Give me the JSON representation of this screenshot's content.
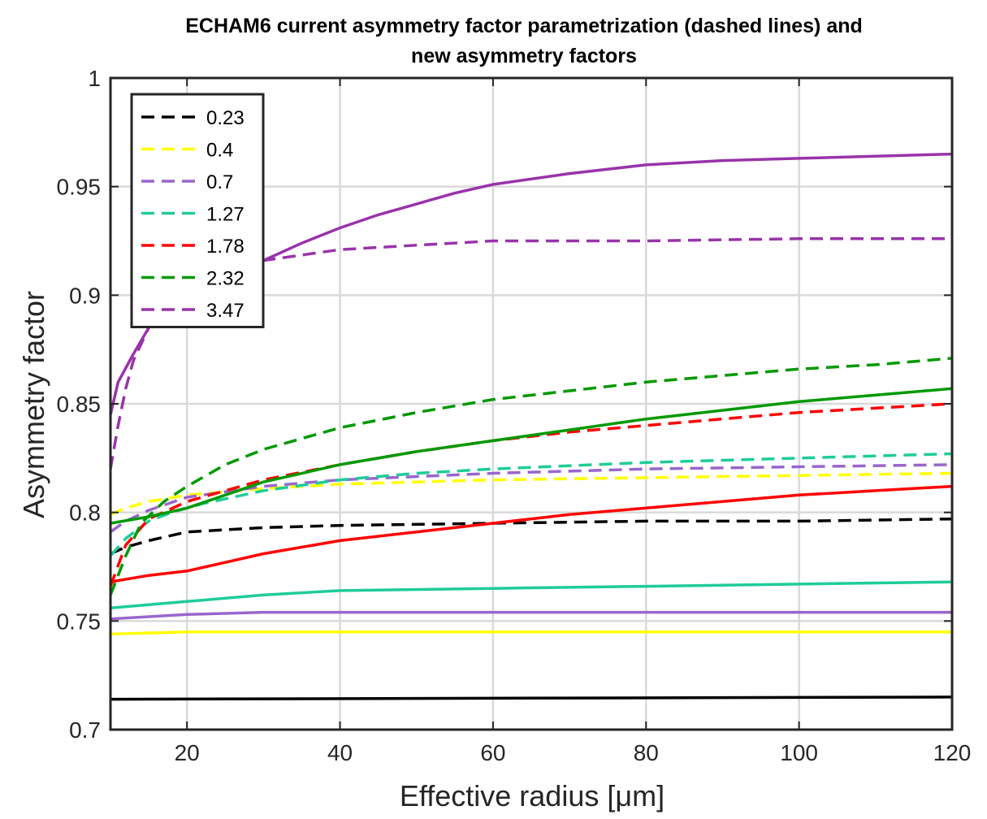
{
  "chart_data": {
    "type": "line",
    "title": [
      "ECHAM6 current asymmetry factor parametrization (dashed lines) and",
      "new asymmetry factors"
    ],
    "xlabel": "Effective radius [μm]",
    "ylabel": "Asymmetry factor",
    "xlim": [
      10,
      120
    ],
    "ylim": [
      0.7,
      1
    ],
    "xticks": [
      20,
      40,
      60,
      80,
      100,
      120
    ],
    "xtick_labels": [
      "20",
      "40",
      "60",
      "80",
      "100",
      "120"
    ],
    "yticks": [
      0.7,
      0.75,
      0.8,
      0.85,
      0.9,
      0.95,
      1
    ],
    "ytick_labels": [
      "0.7",
      "0.75",
      "0.8",
      "0.85",
      "0.9",
      "0.95",
      "1"
    ],
    "grid": true,
    "legend_position": "top-left",
    "legend": [
      "0.23",
      "0.4",
      "0.7",
      "1.27",
      "1.78",
      "2.32",
      "3.47"
    ],
    "series": [
      {
        "name": "0.23",
        "style": "dashed",
        "color": "#000000",
        "x": [
          10,
          12,
          15,
          20,
          30,
          40,
          60,
          80,
          100,
          120
        ],
        "y": [
          0.781,
          0.784,
          0.787,
          0.791,
          0.793,
          0.794,
          0.795,
          0.796,
          0.796,
          0.797
        ]
      },
      {
        "name": "0.4",
        "style": "dashed",
        "color": "#ffff00",
        "x": [
          10,
          12,
          15,
          20,
          30,
          40,
          60,
          80,
          100,
          120
        ],
        "y": [
          0.799,
          0.802,
          0.805,
          0.808,
          0.811,
          0.813,
          0.815,
          0.816,
          0.817,
          0.818
        ]
      },
      {
        "name": "0.7",
        "style": "dashed",
        "color": "#9966cc",
        "x": [
          10,
          12,
          15,
          20,
          30,
          40,
          60,
          80,
          100,
          120
        ],
        "y": [
          0.791,
          0.796,
          0.801,
          0.807,
          0.812,
          0.815,
          0.818,
          0.82,
          0.821,
          0.822
        ]
      },
      {
        "name": "1.27",
        "style": "dashed",
        "color": "#1fcc99",
        "x": [
          10,
          12,
          15,
          18,
          22,
          26,
          30,
          40,
          50,
          60,
          80,
          100,
          120
        ],
        "y": [
          0.78,
          0.788,
          0.796,
          0.8,
          0.804,
          0.807,
          0.81,
          0.815,
          0.818,
          0.82,
          0.823,
          0.825,
          0.827
        ]
      },
      {
        "name": "1.78",
        "style": "dashed",
        "color": "#ff0000",
        "x": [
          10,
          12,
          15,
          20,
          25,
          30,
          40,
          50,
          60,
          70,
          80,
          90,
          100,
          110,
          120
        ],
        "y": [
          0.766,
          0.785,
          0.797,
          0.805,
          0.81,
          0.815,
          0.822,
          0.828,
          0.833,
          0.837,
          0.84,
          0.843,
          0.846,
          0.848,
          0.85
        ]
      },
      {
        "name": "2.32",
        "style": "dashed",
        "color": "#009900",
        "x": [
          10,
          12,
          14,
          17,
          20,
          25,
          30,
          40,
          50,
          60,
          70,
          80,
          90,
          100,
          110,
          120
        ],
        "y": [
          0.762,
          0.78,
          0.795,
          0.805,
          0.812,
          0.822,
          0.829,
          0.839,
          0.846,
          0.852,
          0.856,
          0.86,
          0.863,
          0.866,
          0.868,
          0.871
        ]
      },
      {
        "name": "3.47",
        "style": "dashed",
        "color": "#9933aa",
        "x": [
          10,
          11,
          12,
          13,
          15,
          18,
          22,
          26,
          30,
          40,
          50,
          60,
          80,
          100,
          120
        ],
        "y": [
          0.82,
          0.84,
          0.857,
          0.87,
          0.885,
          0.899,
          0.908,
          0.913,
          0.916,
          0.921,
          0.923,
          0.925,
          0.925,
          0.926,
          0.926
        ]
      },
      {
        "name": "",
        "style": "solid",
        "color": "#000000",
        "x": [
          10,
          120
        ],
        "y": [
          0.714,
          0.715
        ]
      },
      {
        "name": "",
        "style": "solid",
        "color": "#ffff00",
        "x": [
          10,
          20,
          40,
          60,
          120
        ],
        "y": [
          0.744,
          0.745,
          0.745,
          0.745,
          0.745
        ]
      },
      {
        "name": "",
        "style": "solid",
        "color": "#9966cc",
        "x": [
          10,
          20,
          30,
          40,
          60,
          80,
          120
        ],
        "y": [
          0.751,
          0.753,
          0.754,
          0.754,
          0.754,
          0.754,
          0.754
        ]
      },
      {
        "name": "",
        "style": "solid",
        "color": "#1fcc99",
        "x": [
          10,
          20,
          30,
          40,
          60,
          80,
          100,
          120
        ],
        "y": [
          0.756,
          0.759,
          0.762,
          0.764,
          0.765,
          0.766,
          0.767,
          0.768
        ]
      },
      {
        "name": "",
        "style": "solid",
        "color": "#ff0000",
        "x": [
          10,
          15,
          20,
          25,
          30,
          40,
          50,
          60,
          70,
          80,
          90,
          100,
          110,
          120
        ],
        "y": [
          0.768,
          0.771,
          0.773,
          0.777,
          0.781,
          0.787,
          0.791,
          0.795,
          0.799,
          0.802,
          0.805,
          0.808,
          0.81,
          0.812
        ]
      },
      {
        "name": "",
        "style": "solid",
        "color": "#009900",
        "x": [
          10,
          15,
          20,
          25,
          30,
          40,
          50,
          60,
          70,
          80,
          90,
          100,
          110,
          120
        ],
        "y": [
          0.795,
          0.798,
          0.802,
          0.808,
          0.814,
          0.822,
          0.828,
          0.833,
          0.838,
          0.843,
          0.847,
          0.851,
          0.854,
          0.857
        ]
      },
      {
        "name": "",
        "style": "solid",
        "color": "#9933aa",
        "x": [
          10,
          11,
          13,
          15,
          18,
          20,
          25,
          30,
          35,
          40,
          45,
          50,
          55,
          60,
          70,
          80,
          90,
          100,
          110,
          120
        ],
        "y": [
          0.845,
          0.86,
          0.873,
          0.885,
          0.895,
          0.9,
          0.909,
          0.916,
          0.924,
          0.931,
          0.937,
          0.942,
          0.947,
          0.951,
          0.956,
          0.96,
          0.962,
          0.963,
          0.964,
          0.965
        ]
      }
    ]
  }
}
